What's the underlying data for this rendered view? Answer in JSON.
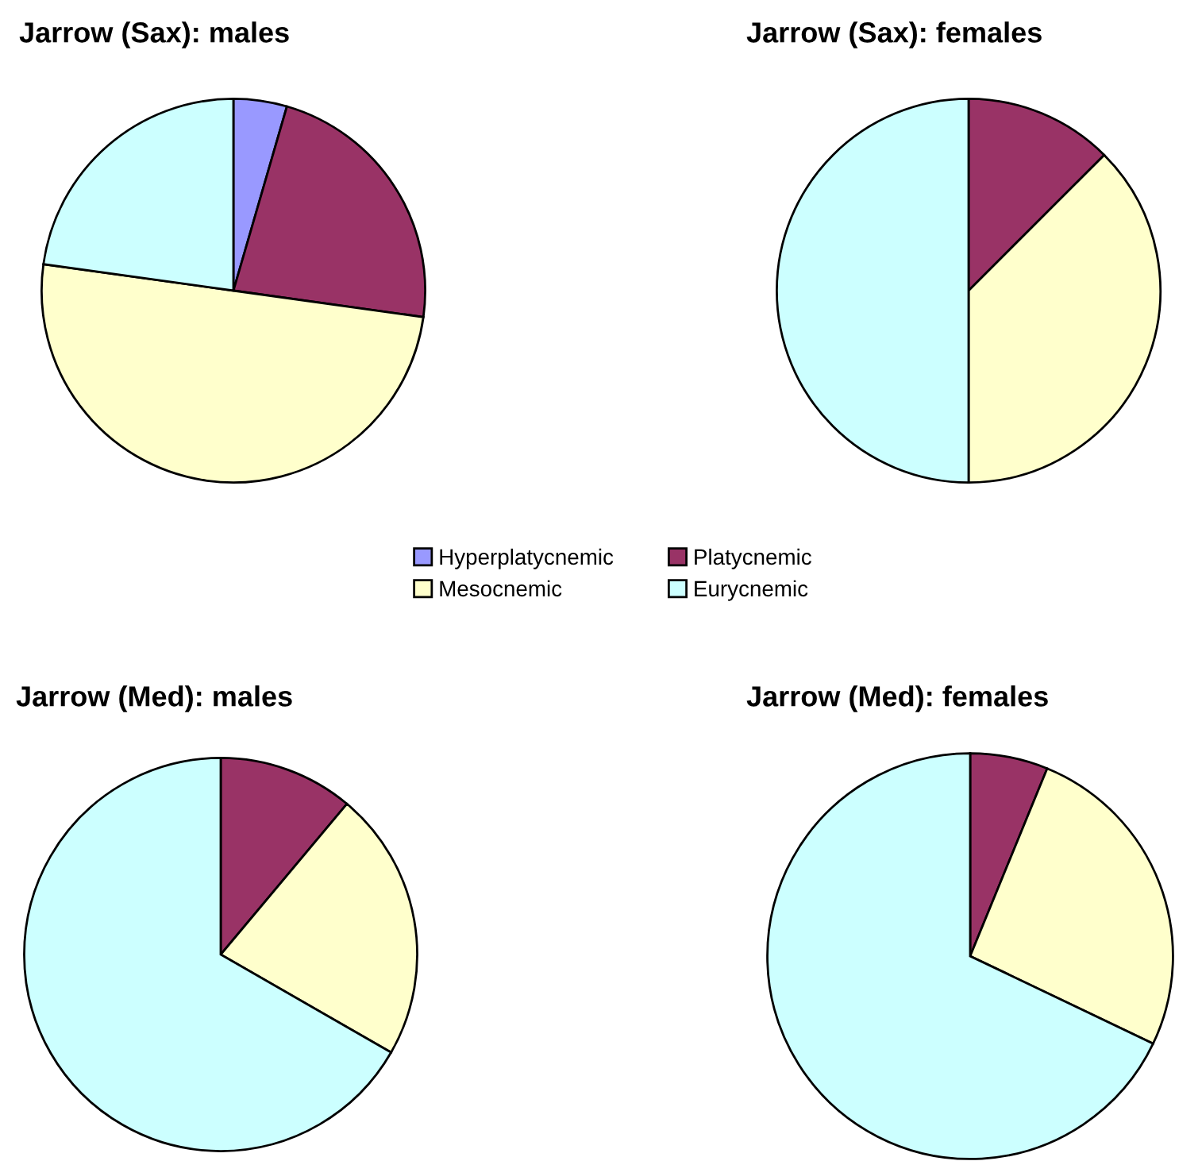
{
  "chart_data": [
    {
      "type": "pie",
      "title": "Jarrow (Sax): males",
      "categories": [
        "Hyperplatycnemic",
        "Platycnemic",
        "Mesocnemic",
        "Eurycnemic"
      ],
      "values": [
        4.5,
        22.7,
        50.0,
        22.8
      ],
      "colors": [
        "#9999ff",
        "#993366",
        "#ffffcc",
        "#ccffff"
      ],
      "legend": "bottom right"
    },
    {
      "type": "pie",
      "title": "Jarrow (Sax): females",
      "categories": [
        null,
        null,
        null,
        null
      ],
      "values": [
        0,
        12.5,
        37.5,
        50.0
      ],
      "colors": [
        "#9999ff",
        "#993366",
        "#ffffcc",
        "#ccffff"
      ]
    },
    {
      "type": "pie",
      "title": "Jarrow (Med): males",
      "categories": [
        null,
        null,
        null,
        null
      ],
      "values": [
        0,
        11.1,
        22.2,
        66.7
      ],
      "colors": [
        "#9999ff",
        "#993366",
        "#ffffcc",
        "#ccffff"
      ]
    },
    {
      "type": "pie",
      "title": "Jarrow (Med): females",
      "categories": [
        null,
        null,
        null,
        null
      ],
      "values": [
        0,
        6.2,
        25.9,
        67.9
      ],
      "colors": [
        "#9999ff",
        "#993366",
        "#ffffcc",
        "#ccffff"
      ]
    }
  ]
}
